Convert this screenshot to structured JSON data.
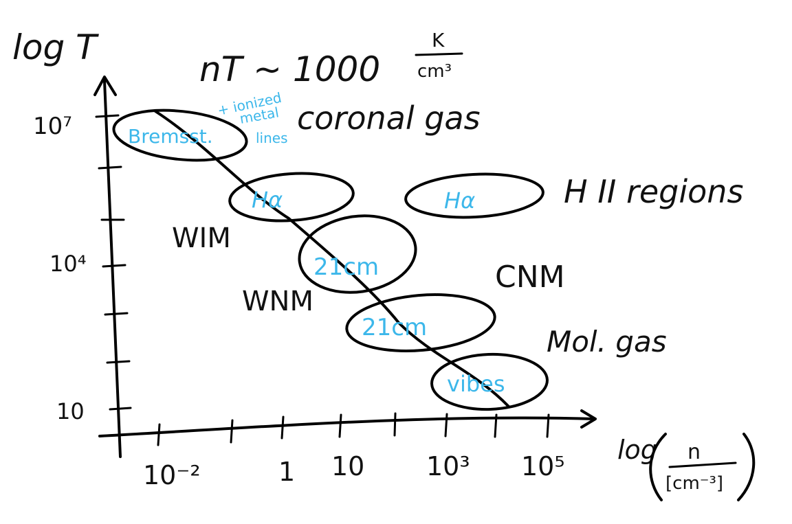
{
  "axes": {
    "y_label": "log T",
    "x_label_prefix": "log",
    "x_label_num": "n",
    "x_label_den": "[cm⁻³]",
    "y_ticks": [
      "10⁷",
      "10⁴",
      "10"
    ],
    "x_ticks": [
      "10⁻²",
      "1",
      "10",
      "10³",
      "10⁵"
    ]
  },
  "pressure": {
    "text": "nT ~ 1000",
    "unit_num": "K",
    "unit_den": "cm³"
  },
  "phases": {
    "coronal": "coronal gas",
    "hii": "H II regions",
    "wim": "WIM",
    "wnm": "WNM",
    "cnm": "CNM",
    "mol": "Mol. gas"
  },
  "tracers": {
    "bremss": "Bremsst.",
    "ionized": "+ ionized",
    "metal": "metal",
    "lines": "lines",
    "halpha_wim": "Hα",
    "halpha_hii": "Hα",
    "cm21_wnm": "21cm",
    "cm21_cnm": "21cm",
    "vibes": "vibes"
  },
  "colors": {
    "ink": "#000000",
    "tracer": "#3cb7ea"
  }
}
